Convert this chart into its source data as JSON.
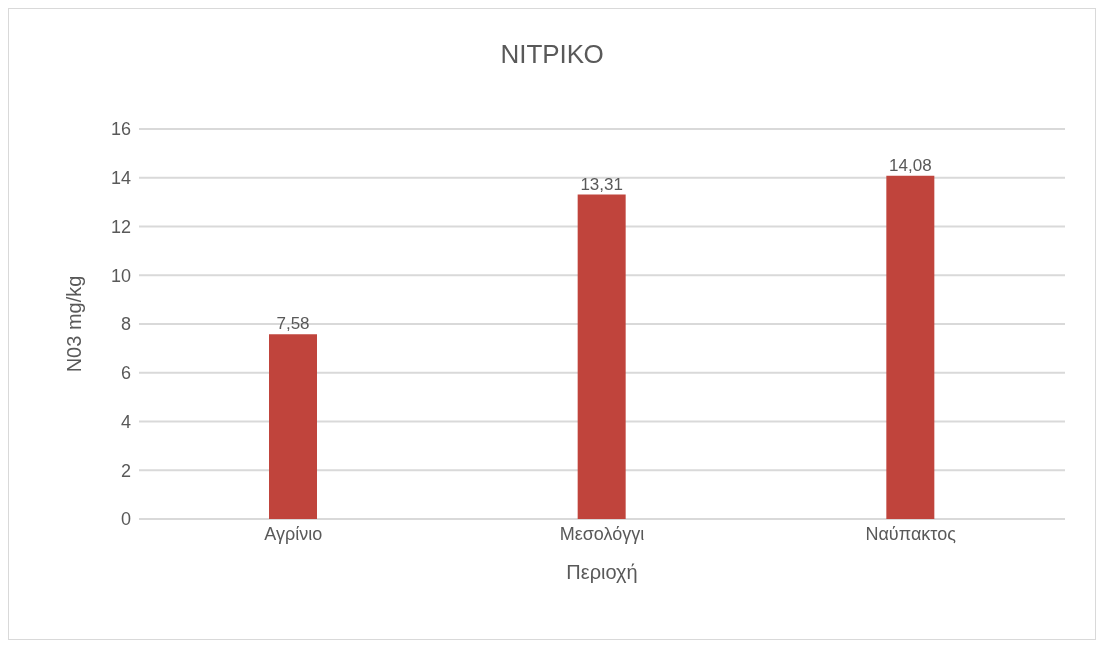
{
  "chart_data": {
    "type": "bar",
    "title": "ΝΙΤΡΙΚΟ",
    "xlabel": "Περιοχή",
    "ylabel": "N03 mg/kg",
    "categories": [
      "Αγρίνιο",
      "Μεσολόγγι",
      "Ναύπακτος"
    ],
    "values": [
      7.58,
      13.31,
      14.08
    ],
    "color": "#c0443c",
    "value_labels": [
      "7,58",
      "13,31",
      "14,08"
    ],
    "ylim": [
      0,
      16
    ],
    "yticks": [
      0,
      2,
      4,
      6,
      8,
      10,
      12,
      14,
      16
    ],
    "grid": "y"
  }
}
